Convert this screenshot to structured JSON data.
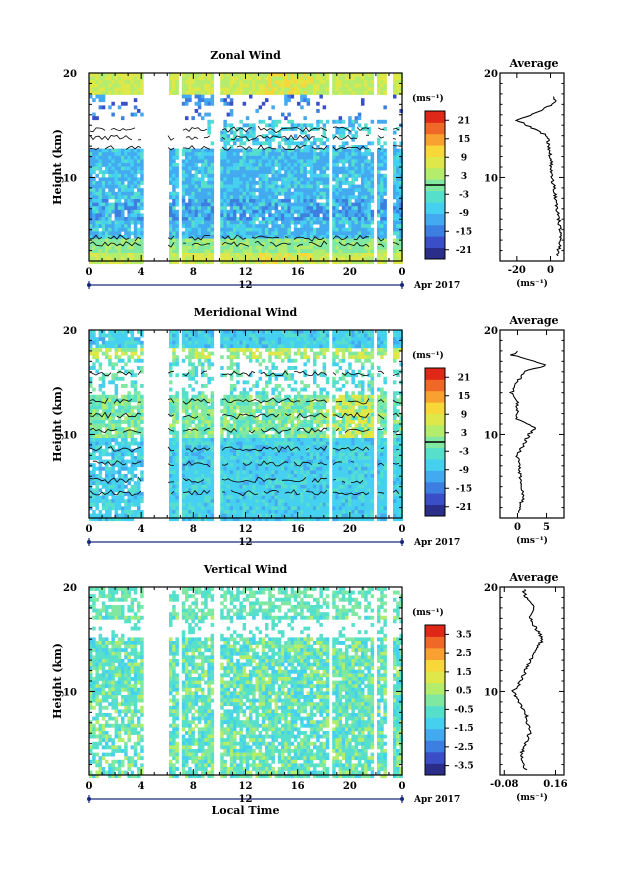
{
  "colormap": [
    "#2a2e88",
    "#3a4ec8",
    "#3c7fe0",
    "#44aaf0",
    "#45d0f0",
    "#56e0cc",
    "#80e8a0",
    "#b4ec6c",
    "#dee848",
    "#f8d838",
    "#f8a030",
    "#f06828",
    "#e02818"
  ],
  "time_ticks": [
    "0",
    "4",
    "8",
    "12",
    "16",
    "20",
    "0"
  ],
  "date_bar": {
    "center_label": "12",
    "right_label": "Apr 2017"
  },
  "xlabel": "Local Time",
  "panels": [
    {
      "title": "Zonal Wind",
      "ylabel": "Height (km)",
      "y_ticks": [
        "20",
        "10"
      ],
      "colorbar": {
        "unit": "(ms⁻¹)",
        "ticks": [
          "21",
          "15",
          "9",
          "3",
          "-3",
          "-9",
          "-15",
          "-21"
        ],
        "range": [
          -24,
          24
        ],
        "zero_line": true
      },
      "average": {
        "title": "Average",
        "unit": "(ms⁻¹)",
        "x_ticks": [
          "-20",
          "0"
        ],
        "xlim": [
          -30,
          8
        ],
        "y_ticks": [
          "20",
          "10"
        ]
      }
    },
    {
      "title": "Meridional Wind",
      "ylabel": "Height (km)",
      "y_ticks": [
        "20",
        "10"
      ],
      "colorbar": {
        "unit": "(ms⁻¹)",
        "ticks": [
          "21",
          "15",
          "9",
          "3",
          "-3",
          "-9",
          "-15",
          "-21"
        ],
        "range": [
          -24,
          24
        ],
        "zero_line": true
      },
      "average": {
        "title": "Average",
        "unit": "(ms⁻¹)",
        "x_ticks": [
          "0",
          "5"
        ],
        "xlim": [
          -3,
          8
        ],
        "y_ticks": [
          "20",
          "10"
        ]
      }
    },
    {
      "title": "Vertical Wind",
      "ylabel": "Height (km)",
      "y_ticks": [
        "20",
        "10"
      ],
      "colorbar": {
        "unit": "(ms⁻¹)",
        "ticks": [
          "3.5",
          "2.5",
          "1.5",
          "0.5",
          "-0.5",
          "-1.5",
          "-2.5",
          "-3.5"
        ],
        "range": [
          -4,
          4
        ],
        "zero_line": false
      },
      "average": {
        "title": "Average",
        "unit": "(ms⁻¹)",
        "x_ticks": [
          "-0.08",
          "0.16"
        ],
        "xlim": [
          -0.1,
          0.2
        ],
        "y_ticks": [
          "20",
          "10"
        ]
      }
    }
  ],
  "chart_data": [
    {
      "type": "heatmap",
      "title": "Zonal Wind",
      "ylabel": "Height (km)",
      "x_ticks": [
        0,
        4,
        8,
        12,
        16,
        20,
        24
      ],
      "ylim": [
        2,
        20
      ],
      "value_range": [
        -24,
        24
      ],
      "data_gaps_hours": [
        [
          4,
          6
        ],
        [
          6.7,
          7
        ],
        [
          9.5,
          10
        ],
        [
          18.3,
          18.6
        ],
        [
          21.6,
          22
        ],
        [
          22.8,
          23.2
        ]
      ],
      "profile": [
        [
          2.5,
          4
        ],
        [
          4,
          6
        ],
        [
          6,
          5
        ],
        [
          8,
          3
        ],
        [
          10,
          1
        ],
        [
          12,
          0
        ],
        [
          14,
          -2
        ],
        [
          15,
          -14
        ],
        [
          15.5,
          -20
        ],
        [
          16.2,
          -8
        ],
        [
          17.2,
          3
        ],
        [
          17.8,
          1
        ]
      ]
    },
    {
      "type": "heatmap",
      "title": "Meridional Wind",
      "ylabel": "Height (km)",
      "x_ticks": [
        0,
        4,
        8,
        12,
        16,
        20,
        24
      ],
      "ylim": [
        2,
        20
      ],
      "value_range": [
        -24,
        24
      ],
      "data_gaps_hours": [
        [
          4,
          6
        ],
        [
          6.7,
          7
        ],
        [
          9.5,
          10
        ],
        [
          18.3,
          18.6
        ],
        [
          21.6,
          22
        ],
        [
          22.8,
          23.2
        ]
      ],
      "profile": [
        [
          2.5,
          0
        ],
        [
          4,
          1
        ],
        [
          6,
          0.5
        ],
        [
          8,
          0
        ],
        [
          10,
          2
        ],
        [
          10.6,
          3
        ],
        [
          11.5,
          0
        ],
        [
          13,
          0
        ],
        [
          14,
          -1
        ],
        [
          16,
          1
        ],
        [
          16.6,
          5
        ],
        [
          17.2,
          2
        ],
        [
          17.6,
          -1
        ],
        [
          18,
          0
        ]
      ]
    },
    {
      "type": "heatmap",
      "title": "Vertical Wind",
      "ylabel": "Height (km)",
      "xlabel": "Local Time",
      "x_ticks": [
        0,
        4,
        8,
        12,
        16,
        20,
        24
      ],
      "ylim": [
        2,
        20
      ],
      "value_range": [
        -4,
        4
      ],
      "data_gaps_hours": [
        [
          4,
          6
        ],
        [
          6.7,
          7
        ],
        [
          9.5,
          10
        ],
        [
          18.3,
          18.6
        ],
        [
          21.6,
          22
        ],
        [
          22.8,
          23.2
        ]
      ],
      "profile": [
        [
          2.5,
          0.02
        ],
        [
          4,
          0.0
        ],
        [
          6,
          0.04
        ],
        [
          8,
          0.02
        ],
        [
          10,
          -0.04
        ],
        [
          11,
          0.0
        ],
        [
          13,
          0.04
        ],
        [
          15,
          0.1
        ],
        [
          16,
          0.07
        ],
        [
          17,
          0.04
        ],
        [
          18,
          0.06
        ],
        [
          19,
          0.02
        ],
        [
          19.8,
          0.01
        ]
      ]
    }
  ]
}
